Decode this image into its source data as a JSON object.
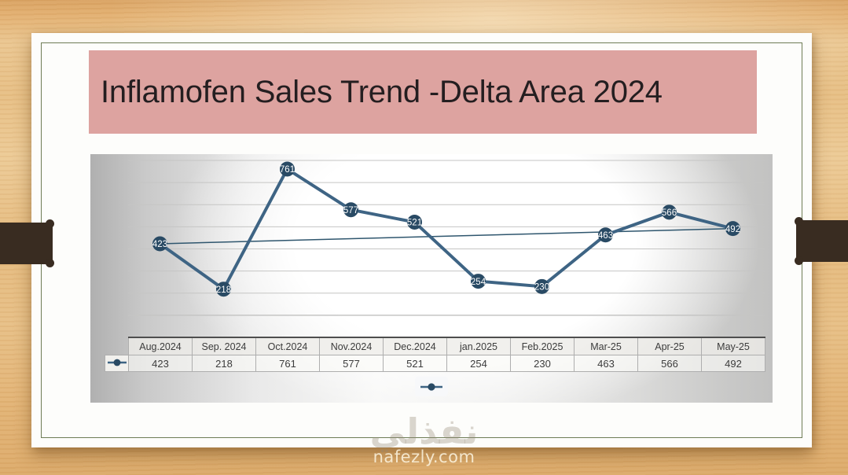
{
  "slide": {
    "title": "Inflamofen Sales Trend -Delta Area 2024",
    "banner_color": "#dda3a0"
  },
  "chart_data": {
    "type": "line",
    "title": "Inflamofen Sales Trend -Delta Area 2024",
    "categories": [
      "Aug.2024",
      "Sep. 2024",
      "Oct.2024",
      "Nov.2024",
      "Dec.2024",
      "jan.2025",
      "Feb.2025",
      "Mar-25",
      "Apr-25",
      "May-25"
    ],
    "values": [
      423,
      218,
      761,
      577,
      521,
      254,
      230,
      463,
      566,
      492
    ],
    "data_labels": [
      "423",
      "218",
      "761",
      "577",
      "521",
      "254",
      "230",
      "463",
      "566",
      "492"
    ],
    "xlabel": "",
    "ylabel": "",
    "ylim": [
      0,
      800
    ],
    "gridline_step": 100,
    "grid": "horizontal",
    "y_axis_labels_visible": false,
    "data_table_visible": true,
    "legend_position": "bottom",
    "trendline": "straight line from first point (423) to last point (492)",
    "colors": {
      "line": "#3e6484",
      "marker": "#294a64",
      "trendline": "#2f566e",
      "data_label": "#ffffff",
      "gridline": "#c5c5c4"
    }
  },
  "icons": {
    "series_marker": "line-with-dot-marker-icon"
  },
  "watermark": {
    "logo_text": "نفذلي",
    "site_text": "nafezly.com"
  }
}
